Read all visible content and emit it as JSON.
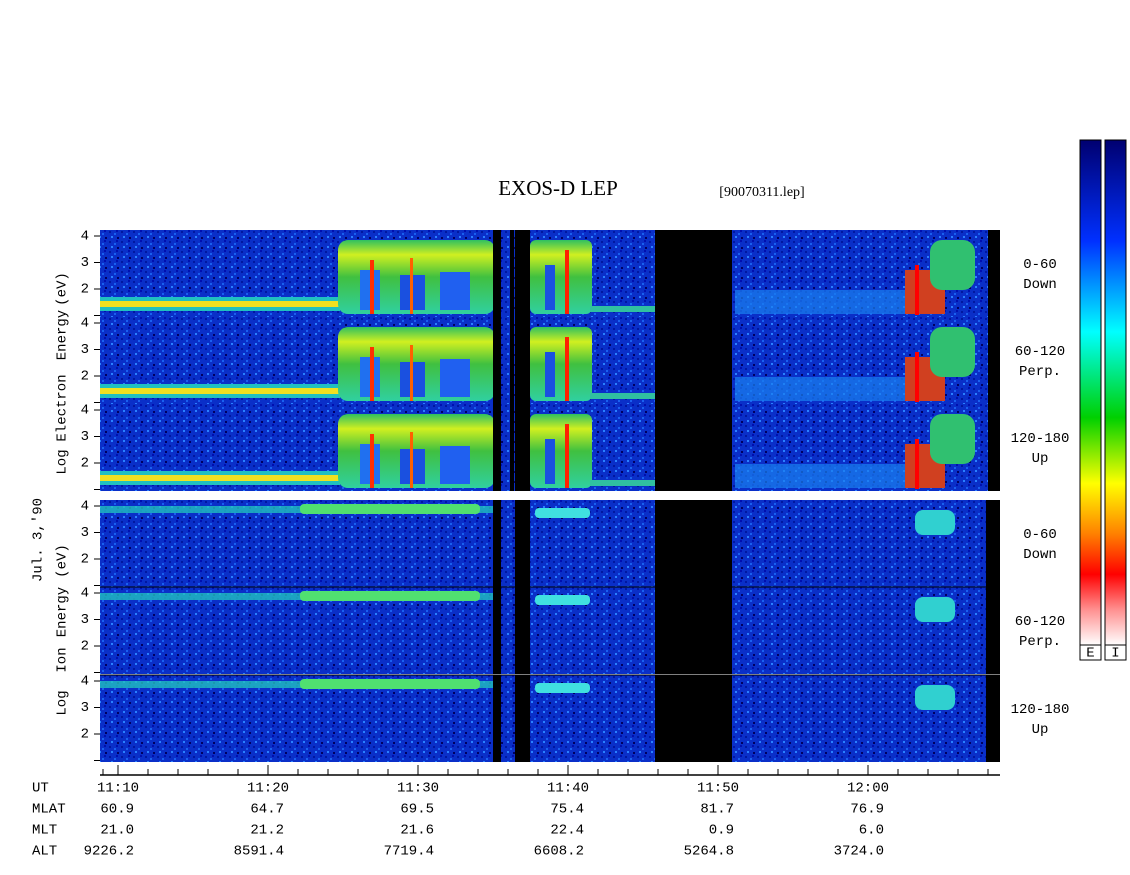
{
  "header": {
    "title": "EXOS-D LEP",
    "file": "[90070311.lep]"
  },
  "date": "Jul. 3,'90",
  "electron_label": [
    "Log",
    "Electron",
    "Energy",
    "(eV)"
  ],
  "ion_label": [
    "Log",
    "Ion",
    "Energy",
    "(eV)"
  ],
  "energy_ticks": [
    "4",
    "3",
    "2"
  ],
  "electron_panels": [
    {
      "angle": "0-60",
      "direction": "Down"
    },
    {
      "angle": "60-120",
      "direction": "Perp."
    },
    {
      "angle": "120-180",
      "direction": "Up"
    }
  ],
  "ion_panels": [
    {
      "angle": "0-60",
      "direction": "Down"
    },
    {
      "angle": "60-120",
      "direction": "Perp."
    },
    {
      "angle": "120-180",
      "direction": "Up"
    }
  ],
  "colorbar_labels": [
    "E",
    "I"
  ],
  "orbit": {
    "rows": [
      {
        "name": "UT",
        "values": [
          "11:10",
          "11:20",
          "11:30",
          "11:40",
          "11:50",
          "12:00"
        ]
      },
      {
        "name": "MLAT",
        "values": [
          "60.9",
          "64.7",
          "69.5",
          "75.4",
          "81.7",
          "76.9"
        ]
      },
      {
        "name": "MLT",
        "values": [
          "21.0",
          "21.2",
          "21.6",
          "22.4",
          "0.9",
          "6.0"
        ]
      },
      {
        "name": "ALT",
        "values": [
          "9226.2",
          "8591.4",
          "7719.4",
          "6608.2",
          "5264.8",
          "3724.0"
        ]
      }
    ]
  }
}
